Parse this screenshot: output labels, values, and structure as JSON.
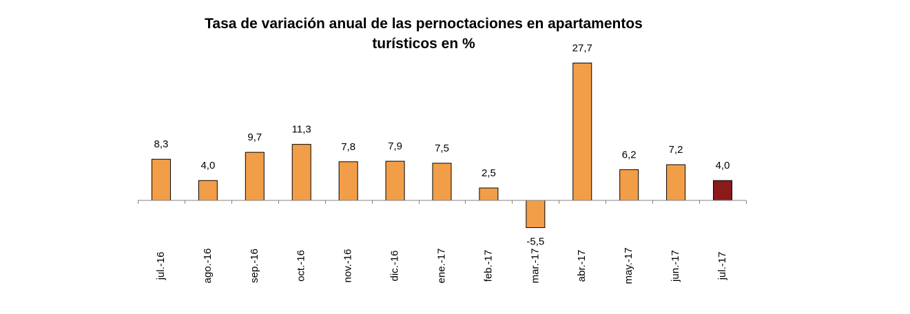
{
  "chart_data": {
    "type": "bar",
    "title_lines": [
      "Tasa de variación anual de las pernoctaciones en apartamentos",
      "turísticos en %"
    ],
    "categories": [
      "jul.-16",
      "ago.-16",
      "sep.-16",
      "oct.-16",
      "nov.-16",
      "dic.-16",
      "ene.-17",
      "feb.-17",
      "mar.-17",
      "abr.-17",
      "may.-17",
      "jun.-17",
      "jul.-17"
    ],
    "values": [
      8.3,
      4.0,
      9.7,
      11.3,
      7.8,
      7.9,
      7.5,
      2.5,
      -5.5,
      27.7,
      6.2,
      7.2,
      4.0
    ],
    "data_labels": [
      "8,3",
      "4,0",
      "9,7",
      "11,3",
      "7,8",
      "7,9",
      "7,5",
      "2,5",
      "-5,5",
      "27,7",
      "6,2",
      "7,2",
      "4,0"
    ],
    "bar_color": "#F29E48",
    "highlight_color": "#8B1A1A",
    "highlight_index": 12,
    "bar_border_color": "#000000",
    "xlabel": "",
    "ylabel": "",
    "grid": false,
    "legend": "none"
  }
}
